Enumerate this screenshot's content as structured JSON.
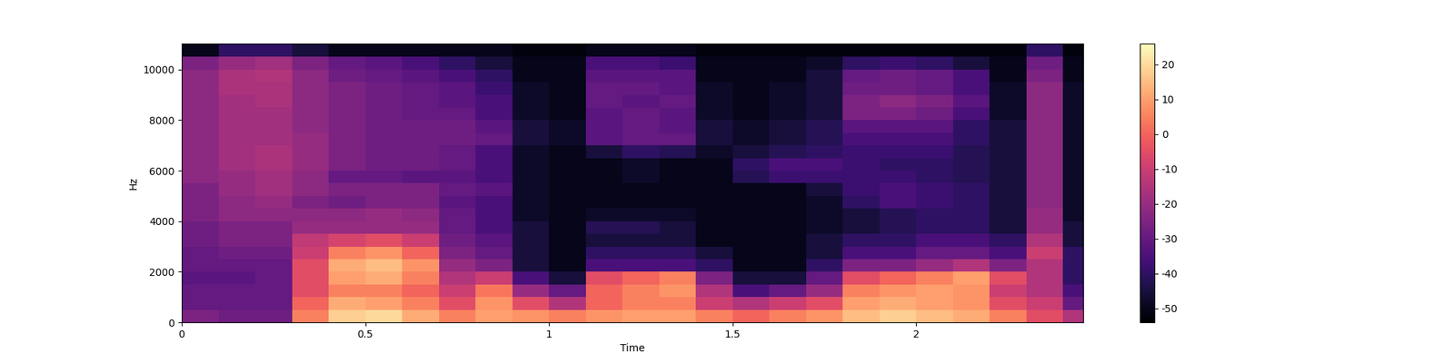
{
  "chart_data": {
    "type": "heatmap",
    "x_label": "Time",
    "y_label": "Hz",
    "color": "magma",
    "xlim": [
      0,
      2.455
    ],
    "ylim": [
      0,
      11025
    ],
    "xticks": [
      0,
      0.5,
      1,
      1.5,
      2
    ],
    "yticks": [
      0,
      2000,
      4000,
      6000,
      8000,
      10000
    ],
    "x_edges": [
      0,
      0.1,
      0.2,
      0.3,
      0.4,
      0.5,
      0.6,
      0.7,
      0.8,
      0.9,
      1.0,
      1.1,
      1.2,
      1.3,
      1.4,
      1.5,
      1.6,
      1.7,
      1.8,
      1.9,
      2.0,
      2.1,
      2.2,
      2.3,
      2.4,
      2.455
    ],
    "y_edges": [
      0,
      500,
      1000,
      1500,
      2000,
      2500,
      3000,
      3500,
      4000,
      4500,
      5000,
      5500,
      6000,
      6500,
      7000,
      7500,
      8000,
      8500,
      9000,
      9500,
      10000,
      10500,
      11025
    ],
    "colorbar_lim": [
      -54,
      26
    ],
    "colorbar_ticks": [
      -50,
      -40,
      -30,
      -20,
      -10,
      0,
      10,
      20
    ],
    "cells": [
      [
        -25,
        -28,
        -28,
        5,
        18,
        20,
        12,
        5,
        10,
        8,
        5,
        8,
        10,
        10,
        5,
        0,
        5,
        8,
        15,
        18,
        15,
        12,
        5,
        -5,
        -15
      ],
      [
        -30,
        -30,
        -30,
        0,
        12,
        10,
        5,
        -5,
        8,
        -5,
        -15,
        0,
        5,
        5,
        -10,
        -15,
        -10,
        -5,
        10,
        12,
        10,
        8,
        -5,
        -10,
        -30
      ],
      [
        -30,
        -30,
        -30,
        -5,
        5,
        5,
        0,
        -10,
        3,
        -20,
        -30,
        0,
        5,
        8,
        -15,
        -35,
        -30,
        -20,
        5,
        8,
        10,
        8,
        -10,
        -15,
        -35
      ],
      [
        -32,
        -32,
        -30,
        -5,
        10,
        12,
        5,
        -15,
        -10,
        -35,
        -45,
        -5,
        0,
        5,
        -25,
        -45,
        -45,
        -30,
        -5,
        0,
        5,
        10,
        -5,
        -15,
        -40
      ],
      [
        -30,
        -30,
        -30,
        -5,
        12,
        15,
        8,
        -20,
        -25,
        -45,
        -50,
        -35,
        -35,
        -35,
        -40,
        -50,
        -50,
        -40,
        -25,
        -25,
        -20,
        -15,
        -25,
        -15,
        -40
      ],
      [
        -30,
        -28,
        -28,
        -10,
        5,
        8,
        0,
        -25,
        -30,
        -45,
        -50,
        -40,
        -40,
        -40,
        -45,
        -50,
        -50,
        -45,
        -35,
        -35,
        -30,
        -30,
        -35,
        -10,
        -40
      ],
      [
        -28,
        -25,
        -25,
        -12,
        -8,
        -5,
        -10,
        -28,
        -32,
        -45,
        -50,
        -45,
        -45,
        -45,
        -50,
        -50,
        -50,
        -45,
        -40,
        -40,
        -35,
        -35,
        -40,
        -15,
        -45
      ],
      [
        -28,
        -25,
        -25,
        -20,
        -20,
        -20,
        -20,
        -30,
        -35,
        -45,
        -50,
        -42,
        -42,
        -45,
        -50,
        -50,
        -50,
        -48,
        -45,
        -42,
        -40,
        -40,
        -45,
        -20,
        -45
      ],
      [
        -25,
        -22,
        -22,
        -22,
        -22,
        -20,
        -22,
        -30,
        -35,
        -48,
        -50,
        -48,
        -48,
        -48,
        -50,
        -50,
        -50,
        -48,
        -45,
        -42,
        -40,
        -40,
        -45,
        -20,
        -48
      ],
      [
        -25,
        -22,
        -20,
        -25,
        -28,
        -25,
        -25,
        -32,
        -35,
        -48,
        -50,
        -50,
        -50,
        -50,
        -50,
        -50,
        -50,
        -48,
        -40,
        -35,
        -38,
        -40,
        -45,
        -22,
        -48
      ],
      [
        -25,
        -20,
        -18,
        -22,
        -25,
        -25,
        -25,
        -30,
        -32,
        -48,
        -50,
        -50,
        -50,
        -50,
        -50,
        -50,
        -50,
        -45,
        -38,
        -35,
        -38,
        -40,
        -45,
        -22,
        -48
      ],
      [
        -22,
        -20,
        -18,
        -22,
        -30,
        -30,
        -32,
        -32,
        -35,
        -48,
        -50,
        -50,
        -48,
        -50,
        -50,
        -42,
        -38,
        -38,
        -38,
        -38,
        -40,
        -42,
        -45,
        -22,
        -48
      ],
      [
        -22,
        -18,
        -16,
        -20,
        -25,
        -28,
        -28,
        -30,
        -35,
        -48,
        -50,
        -50,
        -48,
        -50,
        -50,
        -40,
        -35,
        -35,
        -38,
        -40,
        -40,
        -42,
        -45,
        -22,
        -48
      ],
      [
        -22,
        -18,
        -16,
        -20,
        -25,
        -28,
        -28,
        -30,
        -35,
        -48,
        -50,
        -45,
        -40,
        -42,
        -48,
        -45,
        -42,
        -40,
        -38,
        -38,
        -38,
        -42,
        -45,
        -22,
        -48
      ],
      [
        -22,
        -18,
        -18,
        -20,
        -25,
        -28,
        -28,
        -28,
        -30,
        -45,
        -48,
        -32,
        -30,
        -30,
        -45,
        -48,
        -45,
        -42,
        -35,
        -35,
        -35,
        -40,
        -45,
        -22,
        -48
      ],
      [
        -22,
        -18,
        -18,
        -22,
        -25,
        -28,
        -28,
        -28,
        -32,
        -45,
        -48,
        -32,
        -30,
        -32,
        -45,
        -48,
        -45,
        -42,
        -32,
        -32,
        -32,
        -40,
        -45,
        -22,
        -48
      ],
      [
        -22,
        -18,
        -18,
        -22,
        -25,
        -28,
        -30,
        -30,
        -35,
        -48,
        -50,
        -32,
        -30,
        -32,
        -48,
        -50,
        -48,
        -45,
        -25,
        -25,
        -28,
        -35,
        -48,
        -22,
        -48
      ],
      [
        -22,
        -18,
        -16,
        -22,
        -25,
        -28,
        -30,
        -32,
        -35,
        -48,
        -50,
        -30,
        -32,
        -30,
        -48,
        -50,
        -48,
        -45,
        -25,
        -22,
        -25,
        -32,
        -48,
        -22,
        -48
      ],
      [
        -22,
        -16,
        -16,
        -22,
        -25,
        -28,
        -30,
        -32,
        -38,
        -48,
        -50,
        -30,
        -30,
        -32,
        -48,
        -50,
        -48,
        -45,
        -28,
        -28,
        -30,
        -35,
        -48,
        -22,
        -48
      ],
      [
        -22,
        -16,
        -15,
        -22,
        -28,
        -30,
        -32,
        -35,
        -40,
        -50,
        -50,
        -32,
        -32,
        -32,
        -50,
        -50,
        -50,
        -45,
        -30,
        -28,
        -30,
        -35,
        -50,
        -25,
        -50
      ],
      [
        -25,
        -20,
        -18,
        -25,
        -30,
        -32,
        -35,
        -40,
        -45,
        -50,
        -50,
        -35,
        -35,
        -38,
        -50,
        -50,
        -50,
        -48,
        -40,
        -38,
        -40,
        -45,
        -50,
        -28,
        -50
      ],
      [
        -50,
        -40,
        -40,
        -45,
        -50,
        -50,
        -50,
        -50,
        -50,
        -52,
        -52,
        -50,
        -50,
        -50,
        -52,
        -52,
        -52,
        -52,
        -52,
        -52,
        -52,
        -52,
        -52,
        -40,
        -52
      ]
    ]
  }
}
